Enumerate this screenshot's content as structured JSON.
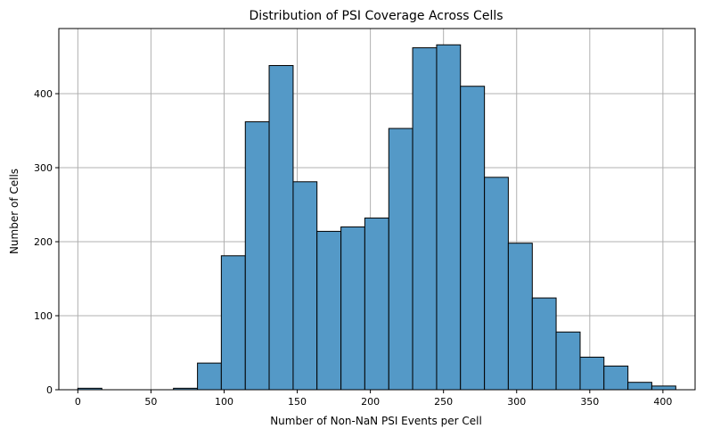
{
  "chart_data": {
    "type": "histogram",
    "title": "Distribution of PSI Coverage Across Cells",
    "xlabel": "Number of Non-NaN PSI Events per Cell",
    "ylabel": "Number of Cells",
    "xlim": [
      -13,
      422
    ],
    "ylim": [
      0,
      488
    ],
    "x_ticks": [
      0,
      50,
      100,
      150,
      200,
      250,
      300,
      350,
      400
    ],
    "y_ticks": [
      0,
      100,
      200,
      300,
      400
    ],
    "grid": true,
    "bar_color": "#5499c7",
    "bar_edge_color": "#000000",
    "bin_edges": [
      0,
      16.4,
      32.7,
      49.1,
      65.4,
      81.8,
      98.1,
      114.5,
      130.8,
      147.2,
      163.5,
      179.9,
      196.2,
      212.6,
      228.9,
      245.3,
      261.6,
      278.0,
      294.3,
      310.7,
      327.0,
      343.4,
      359.7,
      376.1,
      392.4,
      408.8
    ],
    "counts": [
      2,
      0,
      0,
      0,
      2,
      36,
      181,
      362,
      438,
      281,
      214,
      220,
      232,
      353,
      462,
      466,
      410,
      287,
      198,
      124,
      78,
      44,
      32,
      10,
      5
    ]
  }
}
